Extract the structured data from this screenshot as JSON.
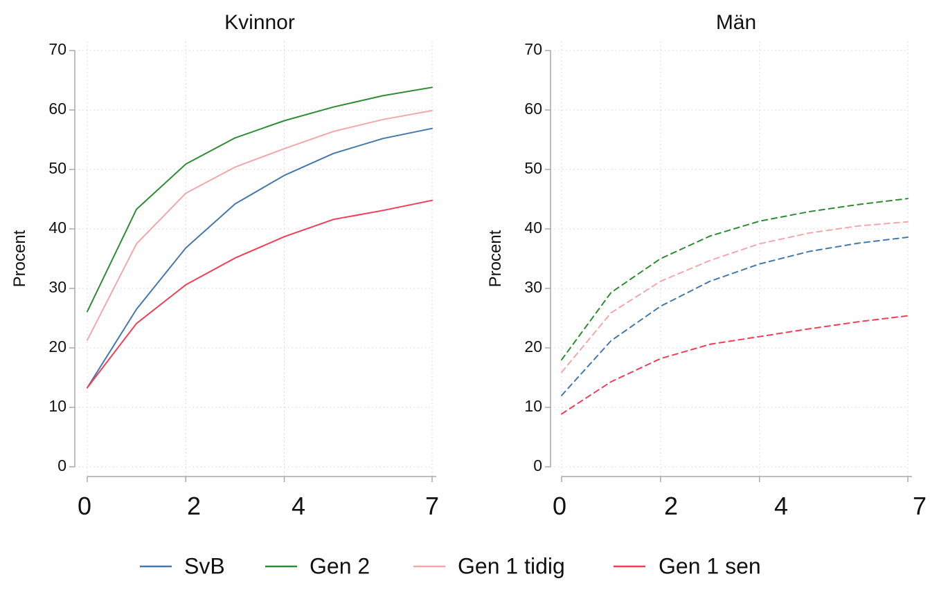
{
  "chart_data": [
    {
      "type": "line",
      "title": "Kvinnor",
      "ylabel": "Procent",
      "xlabel": "",
      "ylim": [
        0,
        70
      ],
      "yticks": [
        0,
        10,
        20,
        30,
        40,
        50,
        60,
        70
      ],
      "xlim": [
        0,
        7
      ],
      "xticks": [
        "0",
        "2",
        "4",
        "7"
      ],
      "grid": true,
      "line_style": "solid",
      "series": [
        {
          "name": "SvB",
          "x": [
            0,
            1,
            2,
            3,
            4,
            5,
            6,
            7
          ],
          "values": [
            13.3,
            26.5,
            36.8,
            44.2,
            49.0,
            52.7,
            55.2,
            56.9
          ]
        },
        {
          "name": "Gen 2",
          "x": [
            0,
            1,
            2,
            3,
            4,
            5,
            6,
            7
          ],
          "values": [
            26.1,
            43.3,
            50.9,
            55.3,
            58.2,
            60.5,
            62.4,
            63.8
          ]
        },
        {
          "name": "Gen 1 tidig",
          "x": [
            0,
            1,
            2,
            3,
            4,
            5,
            6,
            7
          ],
          "values": [
            21.3,
            37.5,
            46.0,
            50.4,
            53.5,
            56.4,
            58.4,
            59.9
          ]
        },
        {
          "name": "Gen 1 sen",
          "x": [
            0,
            1,
            2,
            3,
            4,
            5,
            6,
            7
          ],
          "values": [
            13.3,
            24.1,
            30.6,
            35.1,
            38.7,
            41.6,
            43.1,
            44.8
          ]
        }
      ]
    },
    {
      "type": "line",
      "title": "Män",
      "ylabel": "Procent",
      "xlabel": "",
      "ylim": [
        0,
        70
      ],
      "yticks": [
        0,
        10,
        20,
        30,
        40,
        50,
        60,
        70
      ],
      "xlim": [
        0,
        7
      ],
      "xticks": [
        "0",
        "2",
        "4",
        "7"
      ],
      "grid": true,
      "line_style": "dashed",
      "series": [
        {
          "name": "SvB",
          "x": [
            0,
            1,
            2,
            3,
            4,
            5,
            6,
            7
          ],
          "values": [
            12.0,
            21.2,
            27.0,
            31.2,
            34.1,
            36.2,
            37.6,
            38.6
          ]
        },
        {
          "name": "Gen 2",
          "x": [
            0,
            1,
            2,
            3,
            4,
            5,
            6,
            7
          ],
          "values": [
            18.0,
            29.3,
            35.0,
            38.8,
            41.3,
            42.9,
            44.1,
            45.1
          ]
        },
        {
          "name": "Gen 1 tidig",
          "x": [
            0,
            1,
            2,
            3,
            4,
            5,
            6,
            7
          ],
          "values": [
            15.9,
            25.9,
            31.2,
            34.7,
            37.5,
            39.3,
            40.5,
            41.2
          ]
        },
        {
          "name": "Gen 1 sen",
          "x": [
            0,
            1,
            2,
            3,
            4,
            5,
            6,
            7
          ],
          "values": [
            8.9,
            14.3,
            18.2,
            20.6,
            21.9,
            23.2,
            24.4,
            25.4
          ]
        }
      ]
    }
  ],
  "legend": {
    "placement": "bottom",
    "items": [
      {
        "label": "SvB",
        "color": "#4477aa"
      },
      {
        "label": "Gen 2",
        "color": "#2e8b33"
      },
      {
        "label": "Gen 1 tidig",
        "color": "#f2a7ab"
      },
      {
        "label": "Gen 1 sen",
        "color": "#f23d55"
      }
    ]
  }
}
